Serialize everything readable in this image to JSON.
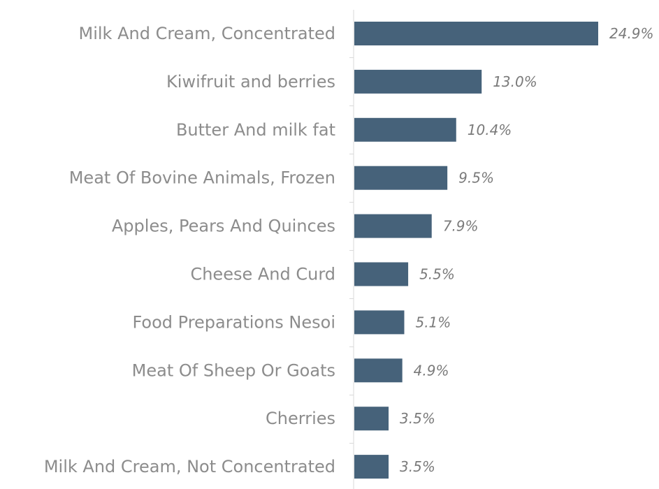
{
  "chart_data": {
    "type": "bar",
    "orientation": "horizontal",
    "categories": [
      "Milk And Cream, Concentrated",
      "Kiwifruit and berries",
      "Butter And milk fat",
      "Meat Of Bovine Animals, Frozen",
      "Apples, Pears And Quinces",
      "Cheese And Curd",
      "Food Preparations Nesoi",
      "Meat Of Sheep Or Goats",
      "Cherries",
      "Milk And Cream, Not Concentrated"
    ],
    "values": [
      24.9,
      13.0,
      10.4,
      9.5,
      7.9,
      5.5,
      5.1,
      4.9,
      3.5,
      3.5
    ],
    "value_labels": [
      "24.9%",
      "13.0%",
      "10.4%",
      "9.5%",
      "7.9%",
      "5.5%",
      "5.1%",
      "4.9%",
      "3.5%",
      "3.5%"
    ],
    "title": "",
    "xlabel": "",
    "ylabel": "",
    "xlim": [
      0,
      25
    ],
    "grid": false,
    "legend": "none",
    "bar_color": "#46627a",
    "axis_color": "#d9d9d9"
  }
}
